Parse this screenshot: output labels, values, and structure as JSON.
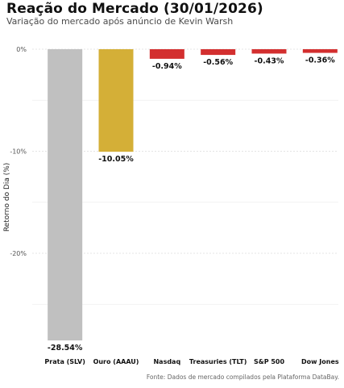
{
  "title": "Reação do Mercado (30/01/2026)",
  "subtitle": "Variação do mercado após anúncio de Kevin Warsh",
  "caption": "Fonte: Dados de mercado compilados pela Plataforma DataBay.",
  "chart_data": {
    "type": "bar",
    "ylabel": "Retorno do Dia (%)",
    "xlabel": "",
    "ylim": [
      -30,
      0
    ],
    "yticks": [
      0,
      -10,
      -20
    ],
    "ytick_labels": [
      "0%",
      "-10%",
      "-20%"
    ],
    "grid": true,
    "categories": [
      "Prata (SLV)",
      "Ouro (AAAU)",
      "Nasdaq",
      "Treasuries (TLT)",
      "S&P 500",
      "Dow Jones"
    ],
    "values": [
      -28.54,
      -10.05,
      -0.94,
      -0.56,
      -0.43,
      -0.36
    ],
    "data_labels": [
      "-28.54%",
      "-10.05%",
      "-0.94%",
      "-0.56%",
      "-0.43%",
      "-0.36%"
    ],
    "colors": [
      "#c0c0c0",
      "#d4af37",
      "#d32f2f",
      "#d32f2f",
      "#d32f2f",
      "#d32f2f"
    ]
  }
}
